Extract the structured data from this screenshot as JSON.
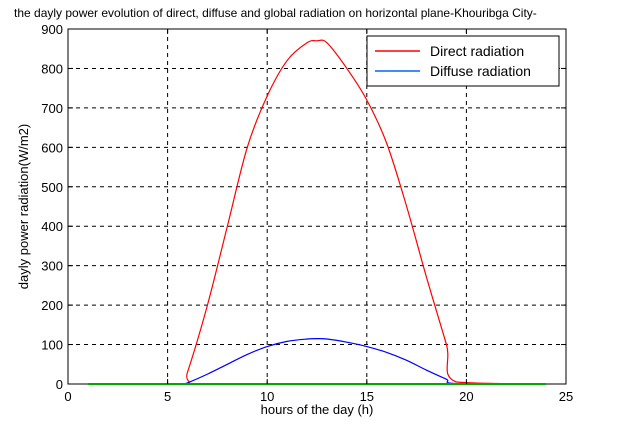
{
  "chart_data": {
    "type": "line",
    "title": "the dayly power evolution of  direct, diffuse and global radiation on horizontal plane-Khouribga City-",
    "xlabel": "hours of the day (h)",
    "ylabel": "dayly power radiation(W/m2)",
    "xlim": [
      0,
      25
    ],
    "ylim": [
      0,
      900
    ],
    "xticks": [
      0,
      5,
      10,
      15,
      20,
      25
    ],
    "yticks": [
      0,
      100,
      200,
      300,
      400,
      500,
      600,
      700,
      800,
      900
    ],
    "grid": true,
    "legend_position": "top-right",
    "series": [
      {
        "name": "Direct radiation",
        "color": "#ff0000",
        "x": [
          1,
          5.7,
          6,
          7,
          8,
          9,
          10,
          11,
          12,
          12.5,
          13,
          14,
          15,
          16,
          17,
          18,
          19,
          19.5,
          24
        ],
        "y": [
          0,
          0,
          30,
          200,
          400,
          600,
          730,
          820,
          865,
          870,
          865,
          800,
          720,
          610,
          450,
          270,
          100,
          5,
          0
        ]
      },
      {
        "name": "Diffuse radiation",
        "color": "#0000ff",
        "x": [
          1,
          5.7,
          6,
          7,
          8,
          9,
          10,
          11,
          12,
          12.5,
          13,
          14,
          15,
          16,
          17,
          18,
          19,
          19.5,
          24
        ],
        "y": [
          0,
          0,
          3,
          25,
          50,
          75,
          95,
          108,
          114,
          115,
          114,
          106,
          95,
          80,
          60,
          35,
          12,
          1,
          0
        ]
      },
      {
        "color": "#00aa00",
        "x": [
          1,
          24
        ],
        "y": [
          0,
          0
        ]
      }
    ]
  }
}
